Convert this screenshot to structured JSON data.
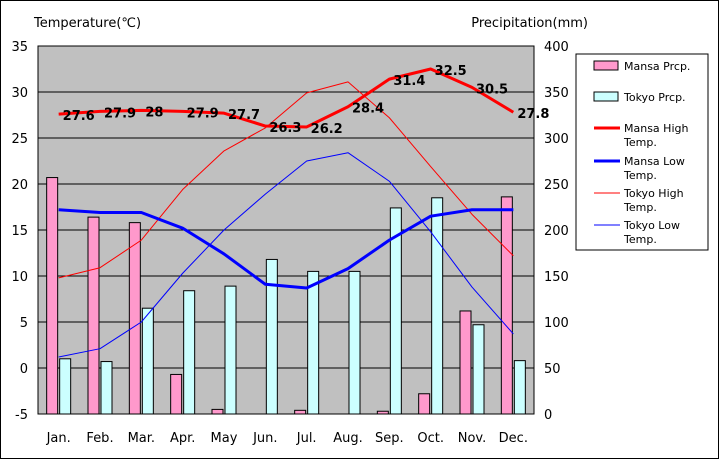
{
  "chart_data": {
    "type": "bar+line",
    "categories": [
      "Jan.",
      "Feb.",
      "Mar.",
      "Apr.",
      "May",
      "Jun.",
      "Jul.",
      "Aug.",
      "Sep.",
      "Oct.",
      "Nov.",
      "Dec."
    ],
    "ylabel_left": "Temperature(℃)",
    "ylabel_right": "Precipitation(mm)",
    "ylim_left": [
      -5,
      35
    ],
    "yticks_left": [
      -5,
      0,
      5,
      10,
      15,
      20,
      25,
      30,
      35
    ],
    "ylim_right": [
      0,
      400
    ],
    "yticks_right": [
      0,
      50,
      100,
      150,
      200,
      250,
      300,
      350,
      400
    ],
    "grid": true,
    "legend_position": "right",
    "bar_series": [
      {
        "name": "Mansa Prcp.",
        "color": "#ff99cc",
        "axis": "right",
        "values": [
          257,
          214,
          208,
          43,
          5,
          0,
          4,
          0,
          3,
          22,
          112,
          236
        ]
      },
      {
        "name": "Tokyo Prcp.",
        "color": "#ccffff",
        "axis": "right",
        "values": [
          60,
          57,
          115,
          134,
          139,
          168,
          155,
          155,
          224,
          235,
          97,
          58
        ]
      }
    ],
    "line_series": [
      {
        "name": "Mansa High Temp.",
        "color": "#ff0000",
        "width": 3,
        "axis": "left",
        "values": [
          27.6,
          27.9,
          28,
          27.9,
          27.7,
          26.3,
          26.2,
          28.4,
          31.4,
          32.5,
          30.5,
          27.8
        ],
        "data_labels": [
          "27.6",
          "27.9",
          "28",
          "27.9",
          "27.7",
          "26.3",
          "26.2",
          "28.4",
          "31.4",
          "32.5",
          "30.5",
          "27.8"
        ]
      },
      {
        "name": "Mansa Low Temp.",
        "color": "#0000ff",
        "width": 3,
        "axis": "left",
        "values": [
          17.2,
          16.9,
          16.9,
          15.2,
          12.4,
          9.1,
          8.7,
          10.8,
          13.9,
          16.5,
          17.2,
          17.2
        ]
      },
      {
        "name": "Tokyo High Temp.",
        "color": "#ff0000",
        "width": 1,
        "axis": "left",
        "values": [
          9.8,
          10.9,
          13.9,
          19.4,
          23.6,
          26.1,
          29.9,
          31.1,
          27.2,
          21.9,
          16.7,
          12.2
        ]
      },
      {
        "name": "Tokyo Low Temp.",
        "color": "#0000ff",
        "width": 1,
        "axis": "left",
        "values": [
          1.2,
          2.1,
          5.0,
          10.3,
          15.0,
          18.9,
          22.5,
          23.4,
          20.3,
          14.8,
          8.8,
          3.7
        ]
      }
    ]
  }
}
